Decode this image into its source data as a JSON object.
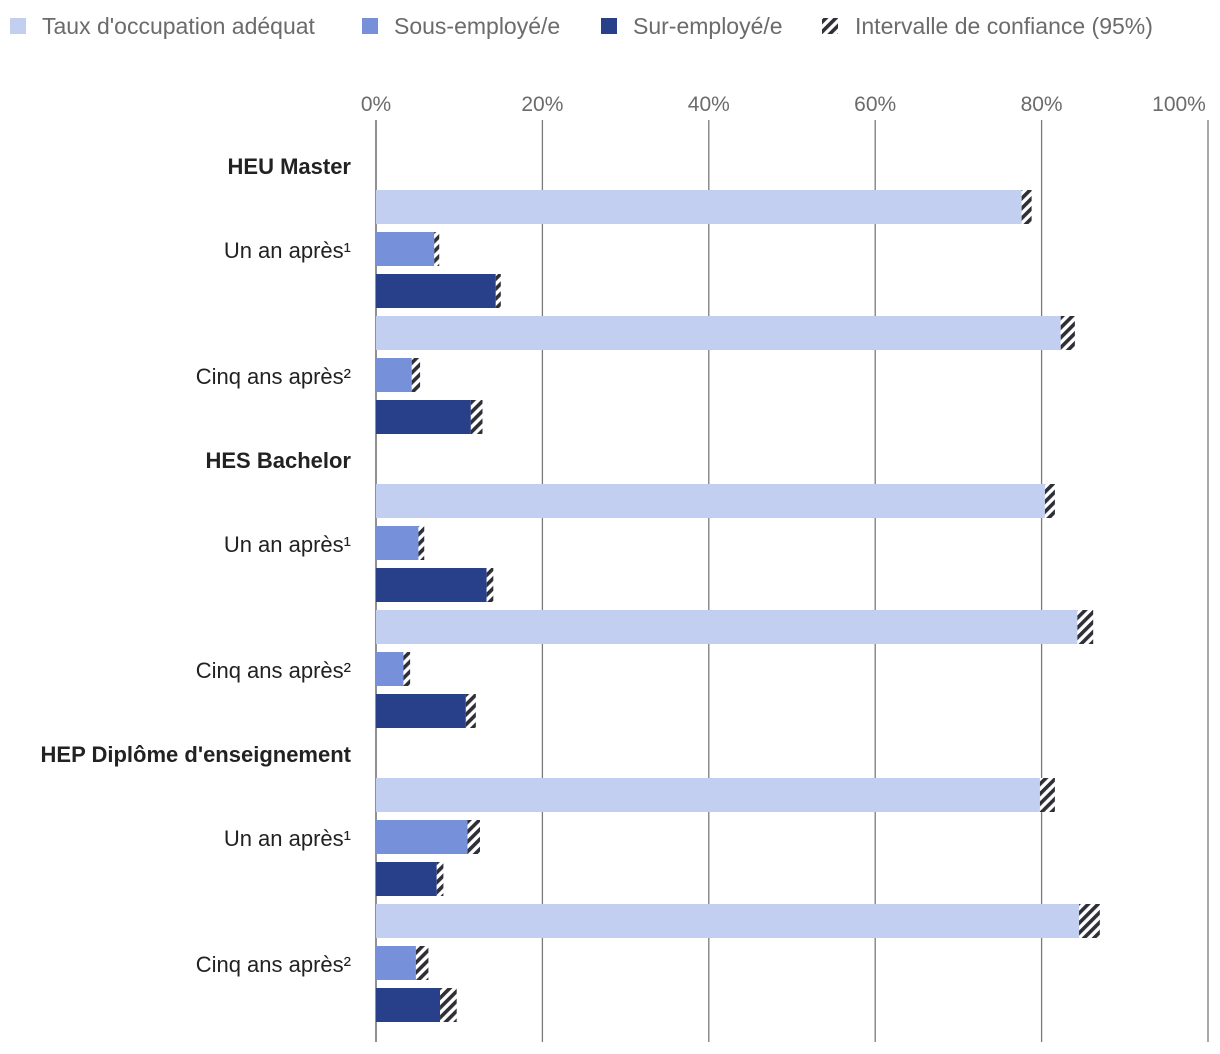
{
  "chart_data": {
    "type": "bar",
    "orientation": "horizontal",
    "legend": {
      "position": "top",
      "entries": [
        {
          "key": "adequate",
          "label": "Taux d'occupation adéquat",
          "color": "#c2cff1"
        },
        {
          "key": "under",
          "label": "Sous-employé/e",
          "color": "#7690da"
        },
        {
          "key": "over",
          "label": "Sur-employé/e",
          "color": "#283f8a"
        },
        {
          "key": "ci",
          "label": "Intervalle de confiance (95%)",
          "color": "#2f2f38"
        }
      ]
    },
    "x_axis": {
      "min": 0,
      "max": 100,
      "ticks": [
        0,
        20,
        40,
        60,
        80,
        100
      ],
      "tick_labels": [
        "0%",
        "20%",
        "40%",
        "60%",
        "80%",
        "100%"
      ],
      "grid": true,
      "position": "top"
    },
    "groups": [
      {
        "label": "HEU Master",
        "periods": [
          {
            "label": "Un an après¹",
            "values": [
              {
                "series": "adequate",
                "value": 77.6,
                "ci_low": 77.6,
                "ci_high": 78.8
              },
              {
                "series": "under",
                "value": 7.0,
                "ci_low": 7.0,
                "ci_high": 7.6
              },
              {
                "series": "over",
                "value": 14.4,
                "ci_low": 14.4,
                "ci_high": 15.0
              }
            ]
          },
          {
            "label": "Cinq ans après²",
            "values": [
              {
                "series": "adequate",
                "value": 82.3,
                "ci_low": 82.3,
                "ci_high": 84.0
              },
              {
                "series": "under",
                "value": 4.3,
                "ci_low": 4.3,
                "ci_high": 5.3
              },
              {
                "series": "over",
                "value": 11.4,
                "ci_low": 11.4,
                "ci_high": 12.8
              }
            ]
          }
        ]
      },
      {
        "label": "HES Bachelor",
        "periods": [
          {
            "label": "Un an après¹",
            "values": [
              {
                "series": "adequate",
                "value": 80.4,
                "ci_low": 80.4,
                "ci_high": 81.6
              },
              {
                "series": "under",
                "value": 5.1,
                "ci_low": 5.1,
                "ci_high": 5.8
              },
              {
                "series": "over",
                "value": 13.3,
                "ci_low": 13.3,
                "ci_high": 14.1
              }
            ]
          },
          {
            "label": "Cinq ans après²",
            "values": [
              {
                "series": "adequate",
                "value": 84.3,
                "ci_low": 84.3,
                "ci_high": 86.2
              },
              {
                "series": "under",
                "value": 3.3,
                "ci_low": 3.3,
                "ci_high": 4.1
              },
              {
                "series": "over",
                "value": 10.8,
                "ci_low": 10.8,
                "ci_high": 12.0
              }
            ]
          }
        ]
      },
      {
        "label": "HEP Diplôme d'enseignement",
        "periods": [
          {
            "label": "Un an après¹",
            "values": [
              {
                "series": "adequate",
                "value": 79.8,
                "ci_low": 79.8,
                "ci_high": 81.6
              },
              {
                "series": "under",
                "value": 11.0,
                "ci_low": 11.0,
                "ci_high": 12.5
              },
              {
                "series": "over",
                "value": 7.3,
                "ci_low": 7.3,
                "ci_high": 8.1
              }
            ]
          },
          {
            "label": "Cinq ans après²",
            "values": [
              {
                "series": "adequate",
                "value": 84.5,
                "ci_low": 84.5,
                "ci_high": 87.0
              },
              {
                "series": "under",
                "value": 4.8,
                "ci_low": 4.8,
                "ci_high": 6.3
              },
              {
                "series": "over",
                "value": 7.7,
                "ci_low": 7.7,
                "ci_high": 9.7
              }
            ]
          }
        ]
      }
    ]
  }
}
